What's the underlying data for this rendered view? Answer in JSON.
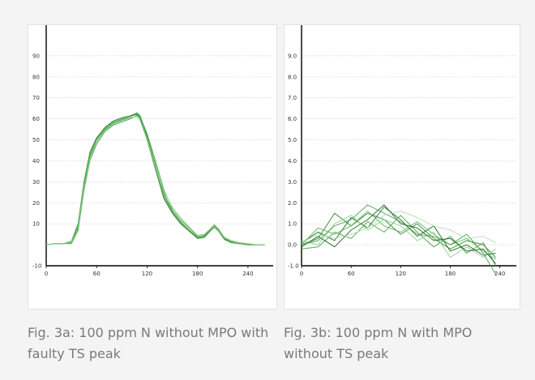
{
  "captions": {
    "a": "Fig. 3a: 100 ppm N without MPO with faulty TS peak",
    "b": "Fig. 3b: 100 ppm N with MPO without TS peak"
  },
  "chart_data": [
    {
      "type": "line",
      "title": "",
      "xlabel": "",
      "ylabel": "",
      "xlim": [
        0,
        270
      ],
      "ylim": [
        -10,
        100
      ],
      "x_ticks": [
        "0",
        "60",
        "120",
        "180",
        "240"
      ],
      "y_ticks": [
        "-10",
        "10",
        "20",
        "30",
        "40",
        "50",
        "60",
        "70",
        "80",
        "90"
      ],
      "grid": "horizontal dotted",
      "line_color": "#2e8b2e",
      "x": [
        0,
        10,
        20,
        30,
        38,
        45,
        52,
        60,
        70,
        80,
        90,
        100,
        108,
        112,
        120,
        130,
        140,
        150,
        160,
        170,
        180,
        188,
        195,
        200,
        205,
        212,
        220,
        230,
        240,
        250,
        260
      ],
      "series": [
        {
          "values": [
            0,
            0.5,
            0.5,
            1,
            8,
            28,
            42,
            50,
            55,
            58,
            59.5,
            61,
            62.5,
            61,
            52,
            38,
            24,
            16,
            11,
            7,
            3.5,
            4,
            7,
            9,
            7,
            3,
            1.5,
            0.5,
            0,
            0,
            0
          ]
        },
        {
          "values": [
            0,
            0.5,
            0.5,
            1.5,
            10,
            30,
            44,
            51,
            56,
            59,
            60.5,
            61.5,
            62,
            60,
            50,
            36,
            22,
            15,
            10,
            6.5,
            3,
            3.5,
            6.5,
            8.5,
            6.5,
            2.5,
            1,
            0.5,
            0,
            0,
            0
          ]
        },
        {
          "values": [
            0,
            0.5,
            0.5,
            0.5,
            7,
            26,
            40,
            48,
            54,
            57,
            58.5,
            60,
            61.5,
            61,
            53,
            40,
            26,
            17,
            12,
            8,
            4,
            4.5,
            7.5,
            9.5,
            7.5,
            3.5,
            2,
            1,
            0.5,
            0,
            0
          ]
        },
        {
          "values": [
            0,
            0.5,
            0.5,
            1,
            9,
            29,
            43,
            50.5,
            55.5,
            58.5,
            60,
            61.5,
            63,
            61.5,
            51,
            37,
            23,
            15.5,
            10.5,
            7,
            3.5,
            4,
            6.8,
            8.8,
            6.8,
            2.8,
            1.2,
            0.5,
            0,
            0,
            0
          ]
        },
        {
          "values": [
            0,
            0.5,
            0.5,
            1,
            8.5,
            27,
            41,
            49,
            54.5,
            57.5,
            59,
            60.5,
            61,
            59,
            50,
            37,
            25,
            18,
            13,
            8.5,
            4.5,
            5,
            7.5,
            9,
            7,
            3.5,
            2,
            1,
            0.5,
            0,
            0
          ]
        }
      ]
    },
    {
      "type": "line",
      "title": "",
      "xlabel": "",
      "ylabel": "",
      "xlim": [
        0,
        260
      ],
      "ylim": [
        -1,
        10
      ],
      "x_ticks": [
        "0",
        "60",
        "120",
        "180",
        "240"
      ],
      "y_ticks": [
        "-1.0",
        "0.0",
        "1.0",
        "2.0",
        "3.0",
        "4.0",
        "5.0",
        "6.0",
        "7.0",
        "8.0",
        "9.0"
      ],
      "grid": "horizontal dotted",
      "line_color": "#2e8b2e",
      "x": [
        0,
        20,
        40,
        60,
        80,
        100,
        120,
        140,
        160,
        180,
        200,
        220,
        235
      ],
      "series": [
        {
          "values": [
            0,
            0.3,
            1.5,
            0.9,
            1.5,
            1.2,
            0.5,
            1.0,
            0.3,
            -0.2,
            0.2,
            0.0,
            -0.6
          ]
        },
        {
          "values": [
            0.1,
            0.6,
            0.2,
            1.3,
            0.8,
            1.8,
            1.2,
            0.4,
            0.9,
            -0.3,
            0.0,
            -0.5,
            -0.4
          ]
        },
        {
          "values": [
            -0.2,
            -0.1,
            0.6,
            0.3,
            1.1,
            0.6,
            1.4,
            0.6,
            -0.1,
            0.4,
            -0.4,
            0.1,
            -1.0
          ]
        },
        {
          "values": [
            0,
            0.8,
            0.5,
            0.9,
            1.6,
            0.9,
            0.6,
            1.1,
            0.5,
            0.0,
            0.3,
            -0.3,
            -0.7
          ]
        },
        {
          "values": [
            0.2,
            0.0,
            1.0,
            1.4,
            0.7,
            1.2,
            0.9,
            0.2,
            0.6,
            -0.6,
            -0.1,
            -0.6,
            -0.2
          ]
        },
        {
          "values": [
            -0.1,
            0.4,
            -0.1,
            0.7,
            1.2,
            1.9,
            1.0,
            0.8,
            0.2,
            0.3,
            -0.3,
            -0.2,
            -0.9
          ]
        },
        {
          "values": [
            0,
            0.2,
            0.9,
            1.2,
            1.9,
            1.5,
            1.1,
            0.5,
            0.4,
            0.0,
            0.5,
            -0.4,
            -1.4
          ]
        },
        {
          "values": [
            0.1,
            0.5,
            0.3,
            0.5,
            0.8,
            1.4,
            1.6,
            1.3,
            0.9,
            0.7,
            0.3,
            0.4,
            0.1
          ]
        }
      ]
    }
  ]
}
